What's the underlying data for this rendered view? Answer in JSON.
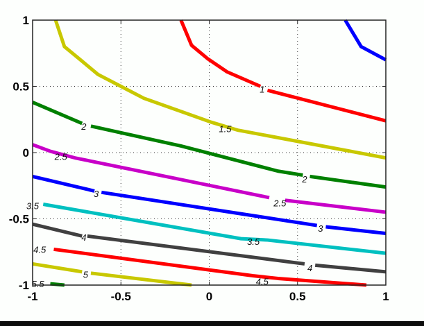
{
  "chart_data": {
    "type": "contour",
    "title": "",
    "xlabel": "",
    "ylabel": "",
    "xlim": [
      -1,
      1
    ],
    "ylim": [
      -1,
      1
    ],
    "grid": true,
    "grid_style": "dotted",
    "xticks": [
      "-1",
      "-0.5",
      "0",
      "0.5",
      "1"
    ],
    "yticks": [
      "1",
      "0.5",
      "0",
      "-0.5",
      "-1"
    ],
    "levels": [
      {
        "level": 0.5,
        "color": "#0000ff",
        "points": [
          [
            0.77,
            1.0
          ],
          [
            0.86,
            0.8
          ],
          [
            1.0,
            0.7
          ]
        ],
        "labels": []
      },
      {
        "level": 1,
        "color": "#ff0000",
        "points": [
          [
            -0.16,
            1.0
          ],
          [
            -0.1,
            0.81
          ],
          [
            -0.01,
            0.71
          ],
          [
            0.1,
            0.61
          ],
          [
            0.29,
            0.5
          ],
          [
            0.33,
            0.47
          ],
          [
            1.0,
            0.24
          ]
        ],
        "labels": [
          {
            "text": "1",
            "x": 0.3,
            "y": 0.48
          }
        ]
      },
      {
        "level": 1.5,
        "color": "#c8c800",
        "points": [
          [
            -0.87,
            1.0
          ],
          [
            -0.82,
            0.8
          ],
          [
            -0.72,
            0.69
          ],
          [
            -0.63,
            0.59
          ],
          [
            -0.5,
            0.5
          ],
          [
            -0.37,
            0.41
          ],
          [
            0.01,
            0.23
          ],
          [
            0.16,
            0.17
          ],
          [
            1.0,
            -0.04
          ]
        ],
        "labels": [
          {
            "text": "1.5",
            "x": 0.09,
            "y": 0.18
          }
        ]
      },
      {
        "level": 2,
        "color": "#008000",
        "points": [
          [
            -1.0,
            0.38
          ],
          [
            -0.72,
            0.22
          ],
          [
            -0.67,
            0.2
          ],
          [
            -0.16,
            0.05
          ],
          [
            0.39,
            -0.14
          ],
          [
            0.53,
            -0.17
          ],
          [
            0.57,
            -0.18
          ],
          [
            1.0,
            -0.26
          ]
        ],
        "labels": [
          {
            "text": "2",
            "x": -0.71,
            "y": 0.2
          },
          {
            "text": "2",
            "x": 0.54,
            "y": -0.2
          }
        ]
      },
      {
        "level": 2.5,
        "color": "#c800c8",
        "points": [
          [
            -1.0,
            0.06
          ],
          [
            -0.9,
            0.01
          ],
          [
            -0.76,
            -0.04
          ],
          [
            0.34,
            -0.34
          ],
          [
            0.43,
            -0.36
          ],
          [
            1.0,
            -0.45
          ]
        ],
        "labels": [
          {
            "text": "2.5",
            "x": -0.84,
            "y": -0.03
          },
          {
            "text": "2.5",
            "x": 0.4,
            "y": -0.38
          }
        ]
      },
      {
        "level": 3,
        "color": "#0000ff",
        "points": [
          [
            -1.0,
            -0.18
          ],
          [
            -0.65,
            -0.29
          ],
          [
            -0.61,
            -0.3
          ],
          [
            0.61,
            -0.55
          ],
          [
            0.66,
            -0.56
          ],
          [
            1.0,
            -0.61
          ]
        ],
        "labels": [
          {
            "text": "3",
            "x": -0.64,
            "y": -0.31
          },
          {
            "text": "3",
            "x": 0.63,
            "y": -0.57
          }
        ]
      },
      {
        "level": 3.5,
        "color": "#00c0c0",
        "points": [
          [
            -0.94,
            -0.39
          ],
          [
            0.18,
            -0.65
          ],
          [
            0.33,
            -0.66
          ],
          [
            1.0,
            -0.76
          ]
        ],
        "labels": [
          {
            "text": "3.5",
            "x": 0.25,
            "y": -0.67
          },
          {
            "text": "3.5",
            "x": -1.0,
            "y": -0.4
          }
        ]
      },
      {
        "level": 4,
        "color": "#404040",
        "points": [
          [
            -1.0,
            -0.54
          ],
          [
            -0.72,
            -0.63
          ],
          [
            -0.69,
            -0.63
          ],
          [
            0.54,
            -0.84
          ],
          [
            0.6,
            -0.85
          ],
          [
            1.0,
            -0.9
          ]
        ],
        "labels": [
          {
            "text": "4",
            "x": -0.71,
            "y": -0.64
          },
          {
            "text": "4",
            "x": 0.57,
            "y": -0.87
          }
        ]
      },
      {
        "level": 4.5,
        "color": "#ff0000",
        "points": [
          [
            -0.88,
            -0.73
          ],
          [
            0.25,
            -0.93
          ],
          [
            0.39,
            -0.95
          ],
          [
            0.89,
            -1.0
          ]
        ],
        "labels": [
          {
            "text": "4.5",
            "x": 0.3,
            "y": -0.97
          },
          {
            "text": "4.5",
            "x": -0.96,
            "y": -0.73
          }
        ]
      },
      {
        "level": 5,
        "color": "#c8c800",
        "points": [
          [
            -1.0,
            -0.84
          ],
          [
            -0.72,
            -0.9
          ],
          [
            -0.67,
            -0.91
          ],
          [
            -0.1,
            -1.0
          ]
        ],
        "labels": [
          {
            "text": "5",
            "x": -0.7,
            "y": -0.92
          }
        ]
      },
      {
        "level": 5.5,
        "color": "#008000",
        "points": [
          [
            -0.9,
            -0.99
          ],
          [
            -0.82,
            -1.0
          ]
        ],
        "labels": [
          {
            "text": "5.5",
            "x": -0.97,
            "y": -0.99
          }
        ]
      }
    ]
  }
}
